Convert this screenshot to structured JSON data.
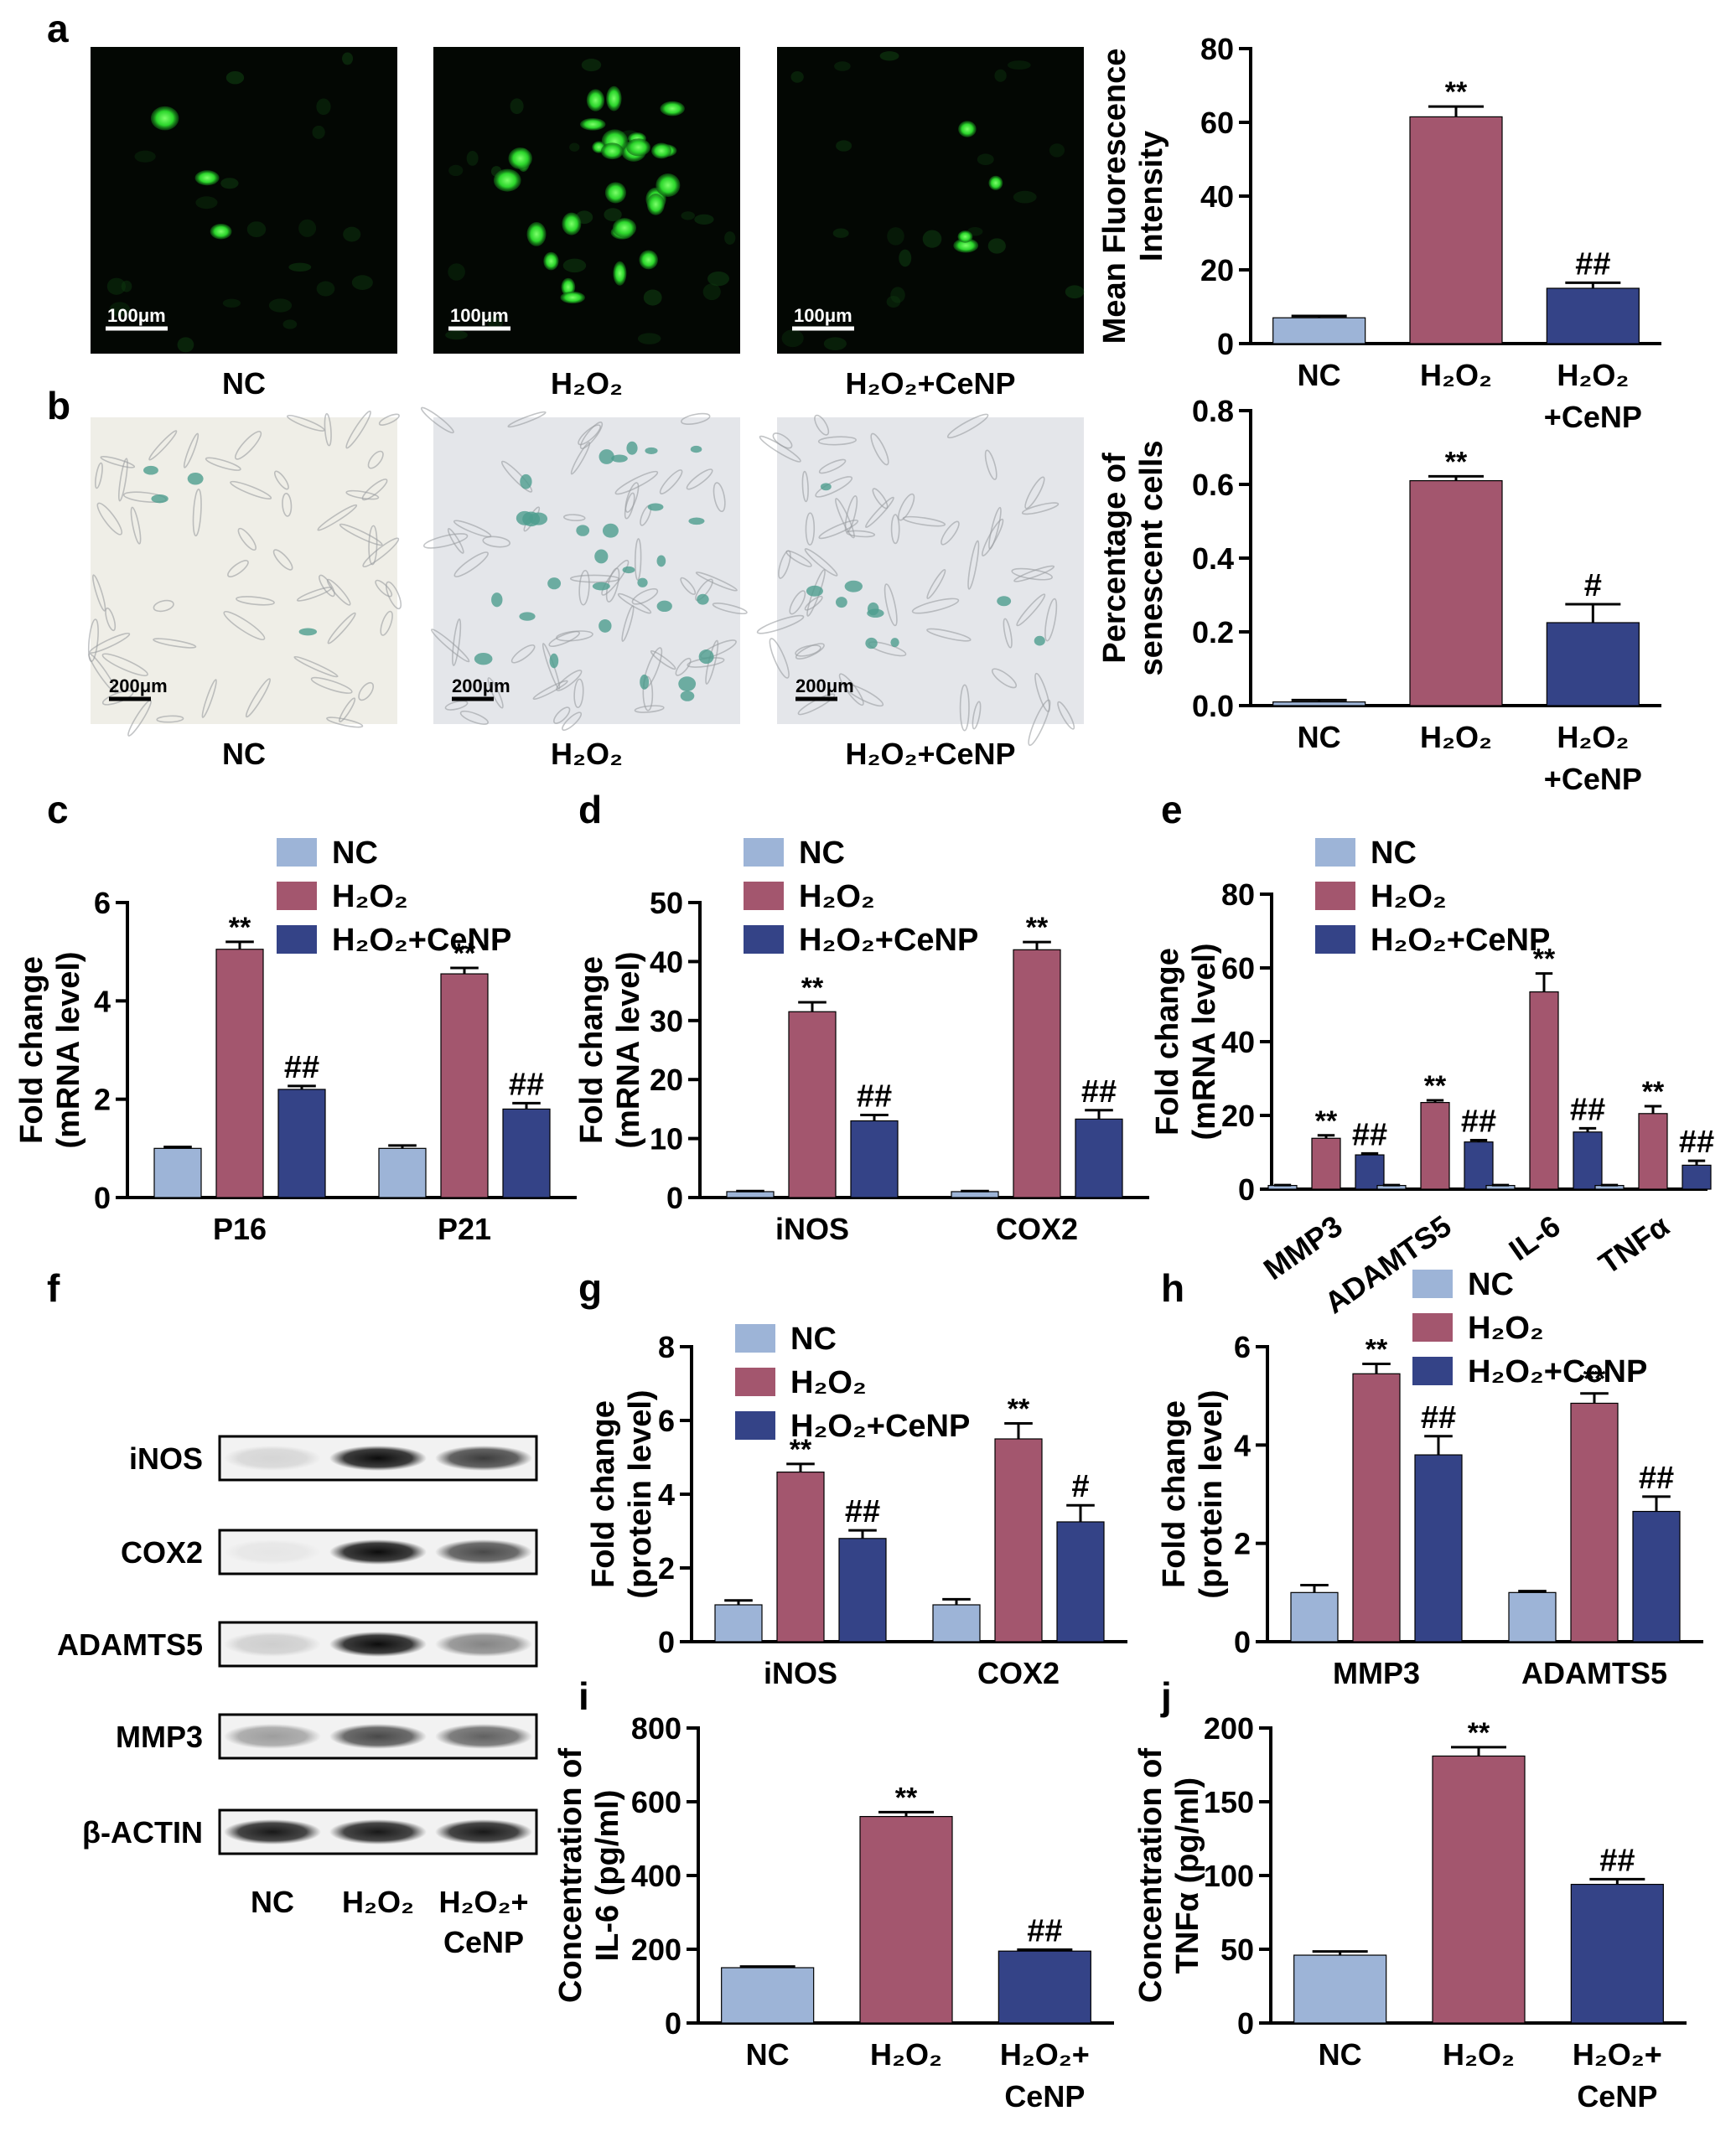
{
  "colors": {
    "nc": "#9DB4D7",
    "h2o2": "#A3566E",
    "cenp": "#344387",
    "gfp": "#2BD52B",
    "sa_bgal": "#4E9E8E"
  },
  "panel_letters": [
    "a",
    "b",
    "c",
    "d",
    "e",
    "f",
    "g",
    "h",
    "i",
    "j"
  ],
  "panel_a": {
    "image_labels": [
      "NC",
      "H₂O₂",
      "H₂O₂+CeNP"
    ],
    "scale_bar": "100μm",
    "description": "fluorescence micrographs"
  },
  "panel_b": {
    "image_labels": [
      "NC",
      "H₂O₂",
      "H₂O₂+CeNP"
    ],
    "scale_bar": "200μm",
    "description": "SA-β-gal stained micrographs"
  },
  "panel_f": {
    "proteins": [
      "iNOS",
      "COX2",
      "ADAMTS5",
      "MMP3",
      "β-ACTIN"
    ],
    "lanes": [
      "NC",
      "H₂O₂",
      "H₂O₂+\nCeNP"
    ],
    "band_intensity": [
      [
        0.12,
        0.95,
        0.75
      ],
      [
        0.05,
        0.95,
        0.7
      ],
      [
        0.15,
        0.95,
        0.45
      ],
      [
        0.35,
        0.7,
        0.6
      ],
      [
        0.9,
        0.9,
        0.9
      ]
    ]
  },
  "chart_data": [
    {
      "id": "a",
      "type": "bar",
      "categories": [
        "NC",
        "H₂O₂",
        "H₂O₂\n+CeNP"
      ],
      "series": [
        {
          "values": [
            7,
            61.5,
            15
          ],
          "errors": [
            0.5,
            2.8,
            1.5
          ]
        }
      ],
      "annotations": [
        "",
        "**",
        "##"
      ],
      "ylabel": [
        "Mean Fluorescence",
        "Intensity"
      ],
      "ylim": [
        0,
        80
      ],
      "yticks": [
        0,
        20,
        40,
        60,
        80
      ],
      "xtick_rotation": 0
    },
    {
      "id": "b",
      "type": "bar",
      "categories": [
        "NC",
        "H₂O₂",
        "H₂O₂\n+CeNP"
      ],
      "series": [
        {
          "values": [
            0.01,
            0.61,
            0.225
          ],
          "errors": [
            0.005,
            0.012,
            0.05
          ]
        }
      ],
      "annotations": [
        "",
        "**",
        "#"
      ],
      "ylabel": [
        "Percentage of",
        "senescent cells"
      ],
      "ylim": [
        0,
        0.8
      ],
      "yticks": [
        "0.0",
        "0.2",
        "0.4",
        "0.6",
        "0.8"
      ],
      "xtick_rotation": 0
    },
    {
      "id": "c",
      "type": "bar",
      "categories": [
        "P16",
        "P21"
      ],
      "series": [
        {
          "name": "NC",
          "values": [
            1,
            1
          ],
          "errors": [
            0.03,
            0.06
          ]
        },
        {
          "name": "H₂O₂",
          "values": [
            5.05,
            4.55
          ],
          "errors": [
            0.15,
            0.12
          ]
        },
        {
          "name": "H₂O₂+CeNP",
          "values": [
            2.2,
            1.8
          ],
          "errors": [
            0.07,
            0.12
          ]
        }
      ],
      "annotations": [
        [
          "",
          "**",
          "##"
        ],
        [
          "",
          "**",
          "##"
        ]
      ],
      "ylabel": [
        "Fold change",
        "(mRNA level)"
      ],
      "ylim": [
        0,
        6
      ],
      "yticks": [
        0,
        2,
        4,
        6
      ],
      "legend": "top",
      "xtick_rotation": 0
    },
    {
      "id": "d",
      "type": "bar",
      "categories": [
        "iNOS",
        "COX2"
      ],
      "series": [
        {
          "name": "NC",
          "values": [
            1,
            1
          ],
          "errors": [
            0.1,
            0.1
          ]
        },
        {
          "name": "H₂O₂",
          "values": [
            31.5,
            42
          ],
          "errors": [
            1.6,
            1.3
          ]
        },
        {
          "name": "H₂O₂+CeNP",
          "values": [
            13,
            13.3
          ],
          "errors": [
            1.0,
            1.5
          ]
        }
      ],
      "annotations": [
        [
          "",
          "**",
          "##"
        ],
        [
          "",
          "**",
          "##"
        ]
      ],
      "ylabel": [
        "Fold change",
        "(mRNA level)"
      ],
      "ylim": [
        0,
        50
      ],
      "yticks": [
        0,
        10,
        20,
        30,
        40,
        50
      ],
      "legend": "top",
      "xtick_rotation": 0
    },
    {
      "id": "e",
      "type": "bar",
      "categories": [
        "MMP3",
        "ADAMTS5",
        "IL-6",
        "TNFα"
      ],
      "series": [
        {
          "name": "NC",
          "values": [
            1,
            1,
            1,
            1
          ],
          "errors": [
            0.1,
            0.1,
            0.1,
            0.1
          ]
        },
        {
          "name": "H₂O₂",
          "values": [
            13.8,
            23.5,
            53.5,
            20.5
          ],
          "errors": [
            0.8,
            0.6,
            5.0,
            2.0
          ]
        },
        {
          "name": "H₂O₂+CeNP",
          "values": [
            9.3,
            12.8,
            15.5,
            6.5
          ],
          "errors": [
            0.4,
            0.5,
            1.0,
            1.2
          ]
        }
      ],
      "annotations": [
        [
          "",
          "**",
          "##"
        ],
        [
          "",
          "**",
          "##"
        ],
        [
          "",
          "**",
          "##"
        ],
        [
          "",
          "**",
          "##"
        ]
      ],
      "ylabel": [
        "Fold change",
        "(mRNA level)"
      ],
      "ylim": [
        0,
        80
      ],
      "yticks": [
        0,
        20,
        40,
        60,
        80
      ],
      "legend": "top",
      "xtick_rotation": -35
    },
    {
      "id": "g",
      "type": "bar",
      "categories": [
        "iNOS",
        "COX2"
      ],
      "series": [
        {
          "name": "NC",
          "values": [
            1,
            1
          ],
          "errors": [
            0.12,
            0.15
          ]
        },
        {
          "name": "H₂O₂",
          "values": [
            4.6,
            5.5
          ],
          "errors": [
            0.22,
            0.42
          ]
        },
        {
          "name": "H₂O₂+CeNP",
          "values": [
            2.8,
            3.25
          ],
          "errors": [
            0.22,
            0.45
          ]
        }
      ],
      "annotations": [
        [
          "",
          "**",
          "##"
        ],
        [
          "",
          "**",
          "#"
        ]
      ],
      "ylabel": [
        "Fold change",
        "(protein level)"
      ],
      "ylim": [
        0,
        8
      ],
      "yticks": [
        0,
        2,
        4,
        6,
        8
      ],
      "legend": "top",
      "xtick_rotation": 0
    },
    {
      "id": "h",
      "type": "bar",
      "categories": [
        "MMP3",
        "ADAMTS5"
      ],
      "series": [
        {
          "name": "NC",
          "values": [
            1,
            1
          ],
          "errors": [
            0.15,
            0.03
          ]
        },
        {
          "name": "H₂O₂",
          "values": [
            5.45,
            4.85
          ],
          "errors": [
            0.2,
            0.2
          ]
        },
        {
          "name": "H₂O₂+CeNP",
          "values": [
            3.8,
            2.65
          ],
          "errors": [
            0.38,
            0.3
          ]
        }
      ],
      "annotations": [
        [
          "",
          "**",
          "##"
        ],
        [
          "",
          "**",
          "##"
        ]
      ],
      "ylabel": [
        "Fold change",
        "(protein level)"
      ],
      "ylim": [
        0,
        6
      ],
      "yticks": [
        0,
        2,
        4,
        6
      ],
      "legend": "top",
      "xtick_rotation": 0
    },
    {
      "id": "i",
      "type": "bar",
      "categories": [
        "NC",
        "H₂O₂",
        "H₂O₂+\nCeNP"
      ],
      "series": [
        {
          "values": [
            150,
            560,
            195
          ],
          "errors": [
            3,
            12,
            4
          ]
        }
      ],
      "annotations": [
        "",
        "**",
        "##"
      ],
      "ylabel": [
        "Concentration of",
        "IL-6 (pg/ml)"
      ],
      "ylim": [
        0,
        800
      ],
      "yticks": [
        0,
        200,
        400,
        600,
        800
      ],
      "xtick_rotation": 0
    },
    {
      "id": "j",
      "type": "bar",
      "categories": [
        "NC",
        "H₂O₂",
        "H₂O₂+\nCeNP"
      ],
      "series": [
        {
          "values": [
            46,
            181,
            94
          ],
          "errors": [
            2.5,
            6,
            3.5
          ]
        }
      ],
      "annotations": [
        "",
        "**",
        "##"
      ],
      "ylabel": [
        "Concentration of",
        "TNFα (pg/ml)"
      ],
      "ylim": [
        0,
        200
      ],
      "yticks": [
        0,
        50,
        100,
        150,
        200
      ],
      "xtick_rotation": 0
    }
  ]
}
